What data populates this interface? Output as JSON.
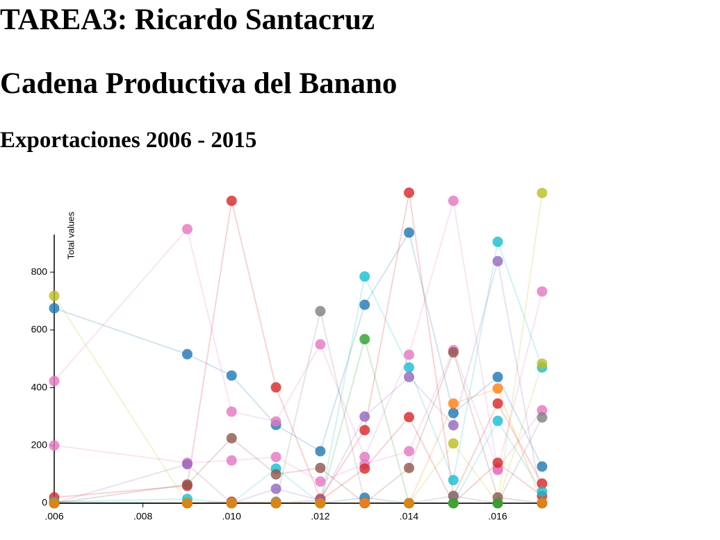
{
  "header": {
    "title": "TAREA3: Ricardo Santacruz",
    "subtitle": "Cadena Productiva del Banano",
    "section": "Exportaciones 2006 - 2015"
  },
  "chart_data": {
    "type": "scatter-line",
    "y_label": "Total values",
    "x": [
      0.006,
      0.009,
      0.01,
      0.011,
      0.012,
      0.013,
      0.014,
      0.015,
      0.016,
      0.017
    ],
    "xlim": [
      0.006,
      0.017
    ],
    "xticks": [
      {
        "value": 0.006,
        "label": ".006"
      },
      {
        "value": 0.008,
        "label": ".008"
      },
      {
        "value": 0.01,
        "label": ".010"
      },
      {
        "value": 0.012,
        "label": ".012"
      },
      {
        "value": 0.014,
        "label": ".014"
      },
      {
        "value": 0.016,
        "label": ".016"
      }
    ],
    "ylim": [
      0,
      930
    ],
    "yticks": [
      0,
      200,
      400,
      600,
      800
    ],
    "series": [
      {
        "color": "#1f77b4",
        "values": [
          675,
          516,
          442,
          271,
          180,
          687,
          937,
          312,
          437,
          127
        ]
      },
      {
        "color": "#1f77b4",
        "values": [
          5,
          0,
          0,
          0,
          0,
          19,
          0,
          0,
          0,
          0
        ]
      },
      {
        "color": "#e377c2",
        "values": [
          423,
          949,
          317,
          283,
          550,
          160,
          514,
          1047,
          115,
          733
        ]
      },
      {
        "color": "#e377c2",
        "values": [
          200,
          140,
          148,
          160,
          75,
          135,
          180,
          530,
          120,
          322
        ]
      },
      {
        "color": "#d62728",
        "values": [
          20,
          60,
          1047,
          401,
          15,
          253,
          1075,
          25,
          345,
          68
        ]
      },
      {
        "color": "#d62728",
        "values": [
          0,
          0,
          5,
          0,
          10,
          120,
          298,
          0,
          140,
          25
        ]
      },
      {
        "color": "#17becf",
        "values": [
          5,
          15,
          0,
          120,
          0,
          785,
          470,
          80,
          905,
          470
        ]
      },
      {
        "color": "#17becf",
        "values": [
          0,
          0,
          0,
          0,
          0,
          0,
          0,
          0,
          285,
          40
        ]
      },
      {
        "color": "#bcbd22",
        "values": [
          718,
          0,
          0,
          0,
          0,
          0,
          0,
          207,
          0,
          483
        ]
      },
      {
        "color": "#bcbd22",
        "values": [
          0,
          0,
          0,
          0,
          0,
          0,
          0,
          0,
          0,
          1074
        ]
      },
      {
        "color": "#9467bd",
        "values": [
          0,
          135,
          0,
          50,
          10,
          300,
          437,
          270,
          838,
          0
        ]
      },
      {
        "color": "#8c564b",
        "values": [
          0,
          65,
          225,
          100,
          122,
          0,
          122,
          522,
          20,
          0
        ]
      },
      {
        "color": "#7f7f7f",
        "values": [
          0,
          0,
          0,
          5,
          665,
          5,
          0,
          25,
          0,
          297
        ]
      },
      {
        "color": "#2ca02c",
        "values": [
          0,
          0,
          0,
          0,
          0,
          568,
          0,
          0,
          0,
          0
        ]
      },
      {
        "color": "#ff7f0e",
        "values": [
          0,
          0,
          0,
          0,
          0,
          0,
          0,
          345,
          397,
          0
        ]
      }
    ]
  }
}
